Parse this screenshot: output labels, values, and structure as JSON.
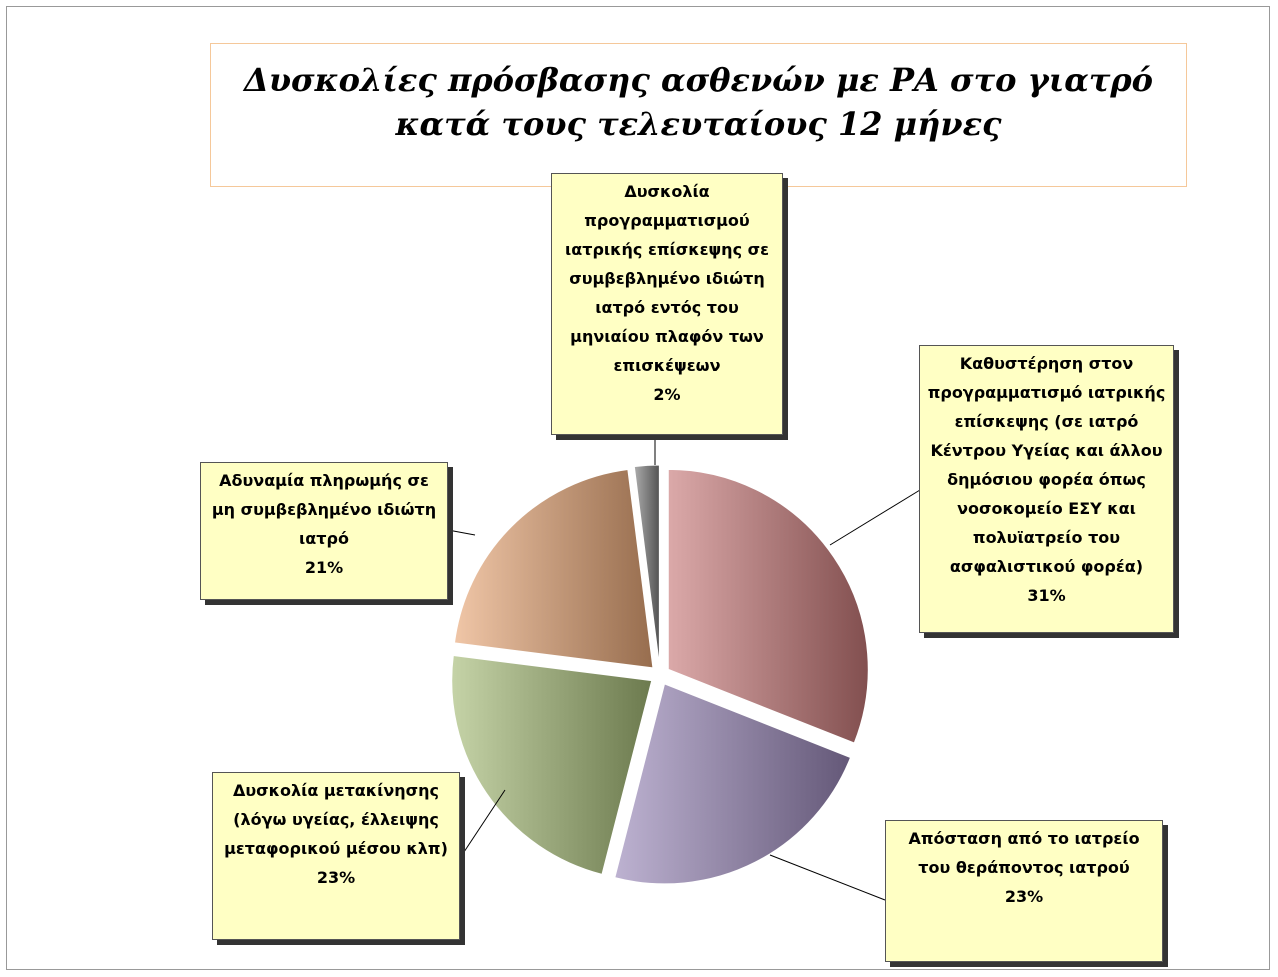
{
  "chart_data": {
    "type": "pie",
    "title": "Δυσκολίες πρόσβασης ασθενών με ΡΑ στο γιατρό κατά τους τελευταίους 12 μήνες",
    "categories": [
      "Καθυστέρηση στον προγραμματισμό ιατρικής επίσκεψης (σε ιατρό Κέντρου Υγείας και άλλου δημόσιου φορέα όπως νοσοκομείο ΕΣΥ και πολυϊατρείο του ασφαλιστικού φορέα)",
      "Απόσταση από το ιατρείο του θεράποντος ιατρού",
      "Δυσκολία μετακίνησης (λόγω υγείας, έλλειψης μεταφορικού μέσου κλπ)",
      "Αδυναμία πληρωμής σε μη συμβεβλημένο ιδιώτη ιατρό",
      "Δυσκολία προγραμματισμού ιατρικής επίσκεψης σε συμβεβλημένο ιδιώτη ιατρό εντός του μηνιαίου πλαφόν των επισκέψεων"
    ],
    "values": [
      31,
      23,
      23,
      21,
      2
    ],
    "value_labels": [
      "31%",
      "23%",
      "23%",
      "21%",
      "2%"
    ],
    "colors": [
      "#c87a7a",
      "#9a88b8",
      "#a6bc78",
      "#e8a878",
      "#808080"
    ]
  }
}
